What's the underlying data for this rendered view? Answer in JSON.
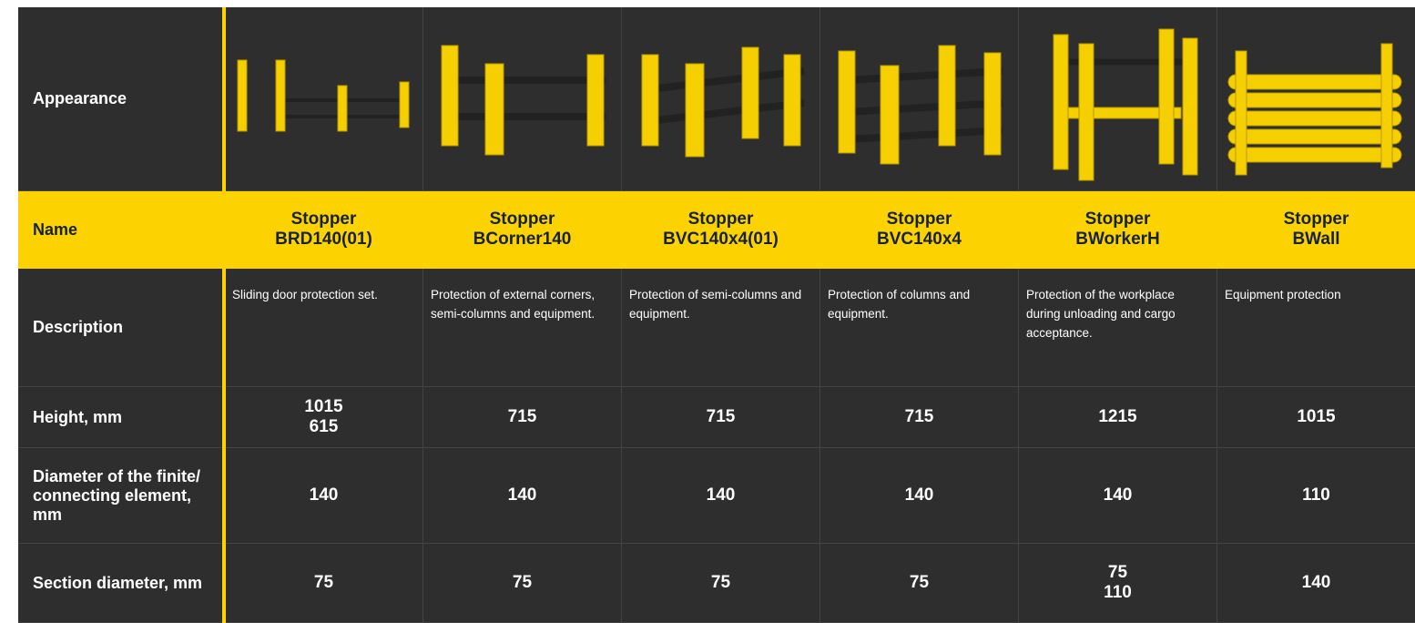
{
  "table": {
    "rows": [
      {
        "label": "Appearance"
      },
      {
        "label": "Name",
        "cells": [
          [
            "Stopper",
            "BRD140(01)"
          ],
          [
            "Stopper",
            "BCorner140"
          ],
          [
            "Stopper",
            "BVC140x4(01)"
          ],
          [
            "Stopper",
            "BVC140x4"
          ],
          [
            "Stopper",
            "BWorkerH"
          ],
          [
            "Stopper",
            "BWall"
          ]
        ]
      },
      {
        "label": "Description",
        "cells": [
          [
            "Sliding door protection set."
          ],
          [
            "Protection of external corners, semi-columns and equipment."
          ],
          [
            "Protection of  semi-columns and equipment."
          ],
          [
            "Protection of  columns and equipment."
          ],
          [
            "Protection of  the workplace during unloading and cargo acceptance."
          ],
          [
            "Equipment protection"
          ]
        ]
      },
      {
        "label": "Height, mm",
        "cells": [
          [
            "1015",
            "615"
          ],
          [
            "715"
          ],
          [
            "715"
          ],
          [
            "715"
          ],
          [
            "1215"
          ],
          [
            "1015"
          ]
        ]
      },
      {
        "label": "Diameter of the finite/ connecting element, mm",
        "cells": [
          [
            "140"
          ],
          [
            "140"
          ],
          [
            "140"
          ],
          [
            "140"
          ],
          [
            "140"
          ],
          [
            "110"
          ]
        ]
      },
      {
        "label": "Section diameter, mm",
        "cells": [
          [
            "75"
          ],
          [
            "75"
          ],
          [
            "75"
          ],
          [
            "75"
          ],
          [
            "75",
            "110"
          ],
          [
            "140"
          ]
        ]
      }
    ]
  }
}
